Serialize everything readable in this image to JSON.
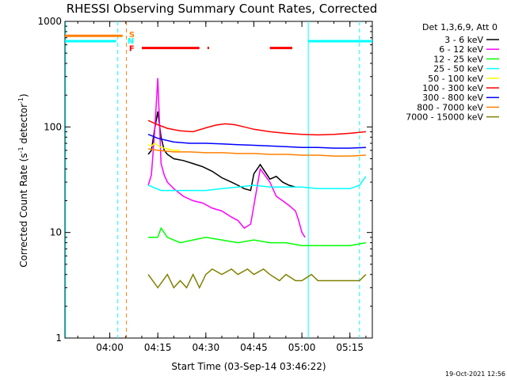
{
  "title": "RHESSI Observing Summary Count Rates, Corrected",
  "date_stamp": "19-Oct-2021 12:56",
  "chart_data": {
    "type": "line",
    "title": "RHESSI Observing Summary Count Rates, Corrected",
    "xlabel": "Start Time (03-Sep-14 03:46:22)",
    "ylabel_main": "Corrected Count Rate (s",
    "ylabel_sup1": "-1",
    "ylabel_mid": " detector",
    "ylabel_sup2": "-1",
    "ylabel_end": ")",
    "y_scale": "log",
    "ylim": [
      1,
      1000
    ],
    "y_ticks": [
      {
        "value": 1,
        "label": "1"
      },
      {
        "value": 10,
        "label": "10"
      },
      {
        "value": 100,
        "label": "100"
      },
      {
        "value": 1000,
        "label": "1000"
      }
    ],
    "xlim_minutes": [
      226,
      322
    ],
    "x_ticks": [
      {
        "value": 240,
        "label": "04:00"
      },
      {
        "value": 255,
        "label": "04:15"
      },
      {
        "value": 270,
        "label": "04:30"
      },
      {
        "value": 285,
        "label": "04:45"
      },
      {
        "value": 300,
        "label": "05:00"
      },
      {
        "value": 315,
        "label": "05:15"
      }
    ],
    "legend_header": "Det 1,3,6,9, Att 0",
    "legend_placement": "outside-right",
    "series": [
      {
        "name": "3 - 6 keV",
        "color": "#000000",
        "x": [
          252,
          253,
          254,
          255,
          256,
          257,
          258,
          260,
          263,
          266,
          269,
          272,
          275,
          278,
          280,
          282,
          284,
          285,
          287,
          290,
          292,
          294,
          296,
          298
        ],
        "y": [
          55,
          60,
          95,
          140,
          80,
          60,
          55,
          50,
          48,
          45,
          42,
          38,
          33,
          30,
          28,
          26,
          25,
          36,
          44,
          32,
          34,
          30,
          28,
          27
        ]
      },
      {
        "name": "6 - 12 keV",
        "color": "#ff00ff",
        "x": [
          252,
          253,
          254,
          255,
          256,
          257,
          258,
          260,
          263,
          266,
          269,
          272,
          275,
          278,
          280,
          282,
          284,
          285,
          287,
          290,
          292,
          294,
          296,
          298,
          299,
          300,
          301
        ],
        "y": [
          28,
          35,
          90,
          290,
          45,
          35,
          30,
          26,
          22,
          20,
          19,
          17,
          16,
          14,
          13,
          11,
          12,
          18,
          40,
          30,
          22,
          20,
          18,
          16,
          13,
          10,
          9
        ]
      },
      {
        "name": "12 - 25 keV",
        "color": "#00ff00",
        "x": [
          252,
          255,
          256,
          258,
          262,
          266,
          270,
          275,
          280,
          285,
          290,
          295,
          300,
          305,
          310,
          315,
          320
        ],
        "y": [
          9,
          9,
          11,
          9,
          8,
          8.5,
          9,
          8.5,
          8,
          8.5,
          8,
          8,
          7.5,
          7.5,
          7.5,
          7.5,
          8
        ]
      },
      {
        "name": "25 - 50 keV",
        "color": "#00ffff",
        "x": [
          252,
          256,
          260,
          265,
          270,
          275,
          280,
          285,
          290,
          295,
          300,
          305,
          310,
          315,
          318,
          320
        ],
        "y": [
          28,
          25,
          25,
          25,
          25,
          26,
          27,
          28,
          27,
          27,
          27,
          26,
          26,
          26,
          28,
          34
        ]
      },
      {
        "name": "50 - 100 keV",
        "color": "#ffff00",
        "x": [
          252,
          253,
          254,
          256,
          258,
          260,
          262
        ],
        "y": [
          68,
          66,
          70,
          64,
          62,
          60,
          60
        ]
      },
      {
        "name": "100 - 300 keV",
        "color": "#ff0000",
        "x": [
          252,
          255,
          258,
          262,
          266,
          270,
          273,
          276,
          279,
          282,
          285,
          290,
          295,
          300,
          305,
          310,
          315,
          320
        ],
        "y": [
          115,
          105,
          97,
          92,
          90,
          98,
          104,
          107,
          105,
          100,
          95,
          90,
          87,
          85,
          84,
          85,
          87,
          90
        ]
      },
      {
        "name": "300 - 800 keV",
        "color": "#0000ff",
        "x": [
          252,
          255,
          260,
          265,
          270,
          275,
          280,
          285,
          290,
          295,
          300,
          305,
          310,
          315,
          320
        ],
        "y": [
          85,
          78,
          72,
          70,
          70,
          69,
          68,
          67,
          66,
          65,
          64,
          64,
          63,
          63,
          64
        ]
      },
      {
        "name": "800 - 7000 keV",
        "color": "#ff8000",
        "x": [
          252,
          255,
          260,
          265,
          270,
          275,
          280,
          285,
          290,
          295,
          300,
          305,
          310,
          315,
          320
        ],
        "y": [
          62,
          60,
          58,
          58,
          57,
          57,
          56,
          56,
          55,
          55,
          54,
          54,
          53,
          53,
          54
        ]
      },
      {
        "name": "7000 - 15000 keV",
        "color": "#808000",
        "x": [
          252,
          255,
          258,
          260,
          262,
          264,
          266,
          268,
          270,
          272,
          275,
          278,
          280,
          283,
          285,
          288,
          290,
          293,
          295,
          298,
          300,
          303,
          305,
          308,
          310,
          313,
          315,
          318,
          320
        ],
        "y": [
          4,
          3,
          4,
          3,
          3.5,
          3,
          4,
          3,
          4,
          4.5,
          4,
          4.5,
          4,
          4.5,
          4,
          4.5,
          4,
          3.5,
          4,
          3.5,
          3.5,
          4,
          3.5,
          3.5,
          3.5,
          3.5,
          3.5,
          3.5,
          4
        ]
      }
    ],
    "attenuator_segments": [
      {
        "y": 730,
        "x": [
          226,
          244
        ],
        "color": "#ff8000"
      },
      {
        "y": 650,
        "x": [
          226,
          242
        ],
        "color": "#00ffff"
      },
      {
        "y": 650,
        "x": [
          302,
          322
        ],
        "color": "#00ffff"
      }
    ],
    "flare_segments": [
      {
        "y": 560,
        "x": [
          250,
          268
        ],
        "color": "#ff0000"
      },
      {
        "y": 560,
        "x": [
          270.5,
          271
        ],
        "color": "#ff0000"
      },
      {
        "y": 560,
        "x": [
          290,
          297
        ],
        "color": "#ff0000"
      }
    ],
    "markers": [
      {
        "label": "S",
        "color": "#ff8000",
        "y": 760,
        "x": 246
      },
      {
        "label": "N",
        "color": "#00ffff",
        "y": 660,
        "x": 245.5
      },
      {
        "label": "F",
        "color": "#ff0000",
        "y": 560,
        "x": 246
      }
    ],
    "vlines": [
      {
        "x": 226.2,
        "color": "#00ffff",
        "style": "solid"
      },
      {
        "x": 242.5,
        "color": "#00ffff",
        "style": "dashed"
      },
      {
        "x": 245.2,
        "color": "#ff8000",
        "style": "dashed"
      },
      {
        "x": 302,
        "color": "#00ffff",
        "style": "solid"
      },
      {
        "x": 318,
        "color": "#00ffff",
        "style": "dashed"
      }
    ]
  }
}
